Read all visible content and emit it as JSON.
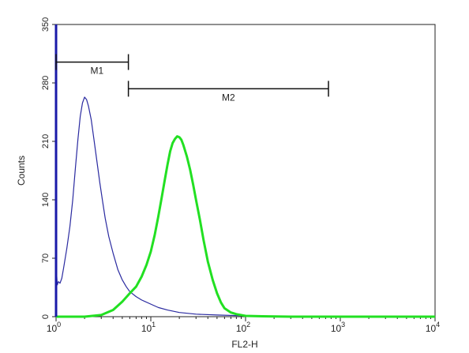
{
  "chart_data": {
    "type": "line",
    "title": "",
    "xlabel": "FL2-H",
    "ylabel": "Counts",
    "x_scale": "log",
    "xlim": [
      1,
      10000
    ],
    "ylim": [
      0,
      350
    ],
    "x_ticks": [
      {
        "value": 1,
        "base": "10",
        "exp": "0"
      },
      {
        "value": 10,
        "base": "10",
        "exp": "1"
      },
      {
        "value": 100,
        "base": "10",
        "exp": "2"
      },
      {
        "value": 1000,
        "base": "10",
        "exp": "3"
      },
      {
        "value": 10000,
        "base": "10",
        "exp": "4"
      }
    ],
    "y_ticks": [
      {
        "value": 0,
        "label": "0"
      },
      {
        "value": 70,
        "label": "70"
      },
      {
        "value": 140,
        "label": "140"
      },
      {
        "value": 210,
        "label": "210"
      },
      {
        "value": 280,
        "label": "280"
      },
      {
        "value": 350,
        "label": "350"
      }
    ],
    "grid": false,
    "series": [
      {
        "color": "#2a2aa0",
        "points": [
          [
            1.0,
            0
          ],
          [
            1.01,
            55
          ],
          [
            1.03,
            38
          ],
          [
            1.06,
            42
          ],
          [
            1.1,
            40
          ],
          [
            1.15,
            46
          ],
          [
            1.2,
            58
          ],
          [
            1.3,
            82
          ],
          [
            1.4,
            108
          ],
          [
            1.5,
            140
          ],
          [
            1.6,
            178
          ],
          [
            1.7,
            212
          ],
          [
            1.8,
            240
          ],
          [
            1.9,
            256
          ],
          [
            2.0,
            263
          ],
          [
            2.1,
            260
          ],
          [
            2.2,
            252
          ],
          [
            2.35,
            236
          ],
          [
            2.5,
            214
          ],
          [
            2.7,
            186
          ],
          [
            2.9,
            160
          ],
          [
            3.1,
            138
          ],
          [
            3.3,
            118
          ],
          [
            3.6,
            96
          ],
          [
            4.0,
            76
          ],
          [
            4.5,
            56
          ],
          [
            5.0,
            44
          ],
          [
            5.5,
            36
          ],
          [
            6.0,
            30
          ],
          [
            7.0,
            24
          ],
          [
            8.0,
            20
          ],
          [
            10.0,
            15
          ],
          [
            12.0,
            11
          ],
          [
            15.0,
            8
          ],
          [
            20.0,
            5
          ],
          [
            30.0,
            3
          ],
          [
            50.0,
            2
          ],
          [
            100.0,
            1
          ],
          [
            200.0,
            0.5
          ],
          [
            1000.0,
            0.3
          ],
          [
            10000.0,
            0.2
          ]
        ]
      },
      {
        "color": "#22e022",
        "points": [
          [
            1.0,
            0
          ],
          [
            2.0,
            0
          ],
          [
            3.0,
            2
          ],
          [
            4.0,
            8
          ],
          [
            5.0,
            18
          ],
          [
            6.0,
            28
          ],
          [
            7.0,
            36
          ],
          [
            8.0,
            48
          ],
          [
            9.0,
            62
          ],
          [
            10.0,
            78
          ],
          [
            11.0,
            98
          ],
          [
            12.0,
            120
          ],
          [
            13.0,
            142
          ],
          [
            14.0,
            163
          ],
          [
            15.0,
            182
          ],
          [
            16.0,
            198
          ],
          [
            17.0,
            208
          ],
          [
            18.0,
            213
          ],
          [
            19.0,
            216
          ],
          [
            20.0,
            215
          ],
          [
            21.0,
            212
          ],
          [
            22.0,
            206
          ],
          [
            24.0,
            192
          ],
          [
            26.0,
            176
          ],
          [
            28.0,
            158
          ],
          [
            30.0,
            140
          ],
          [
            33.0,
            116
          ],
          [
            36.0,
            92
          ],
          [
            40.0,
            66
          ],
          [
            45.0,
            44
          ],
          [
            50.0,
            28
          ],
          [
            55.0,
            17
          ],
          [
            60.0,
            10
          ],
          [
            70.0,
            5
          ],
          [
            80.0,
            3
          ],
          [
            100.0,
            1
          ],
          [
            150.0,
            0.5
          ],
          [
            300.0,
            0
          ],
          [
            10000.0,
            0
          ]
        ]
      }
    ],
    "markers": [
      {
        "label": "M1",
        "x_start": 1.0,
        "x_end": 5.8,
        "y": 305
      },
      {
        "label": "M2",
        "x_start": 5.8,
        "x_end": 750,
        "y": 273
      }
    ]
  }
}
